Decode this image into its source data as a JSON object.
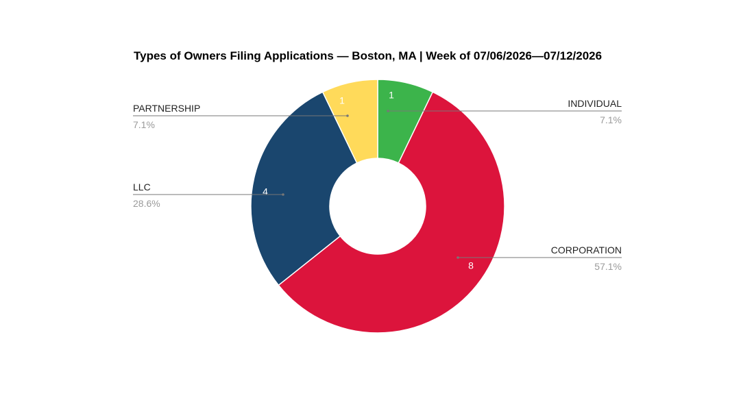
{
  "chart_data": {
    "type": "pie",
    "title": "Types of Owners Filing Applications — Boston, MA | Week of 07/06/2026—07/12/2026",
    "donut": true,
    "slices": [
      {
        "label": "INDIVIDUAL",
        "value": 1,
        "value_label": "1",
        "percent_label": "7.1%",
        "color": "#3cb44b"
      },
      {
        "label": "CORPORATION",
        "value": 8,
        "value_label": "8",
        "percent_label": "57.1%",
        "color": "#dc143c"
      },
      {
        "label": "LLC",
        "value": 4,
        "value_label": "4",
        "percent_label": "28.6%",
        "color": "#1a466e"
      },
      {
        "label": "PARTNERSHIP",
        "value": 1,
        "value_label": "1",
        "percent_label": "7.1%",
        "color": "#ffda5a"
      }
    ]
  }
}
